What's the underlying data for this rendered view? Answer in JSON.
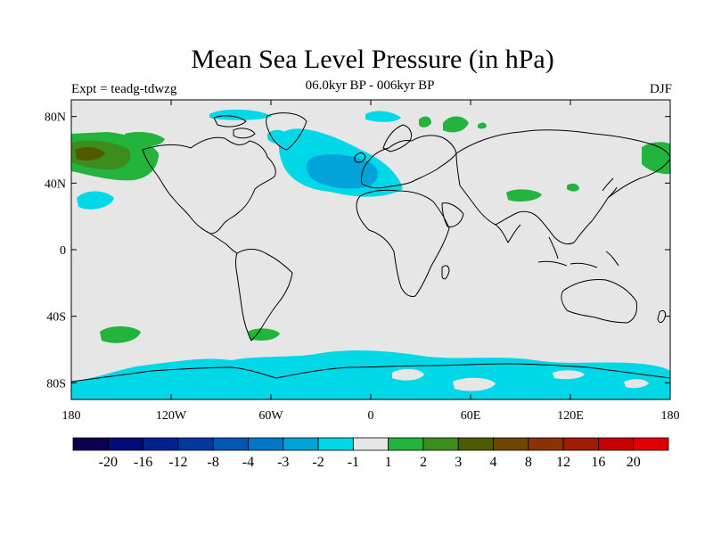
{
  "title": "Mean Sea Level Pressure (in hPa)",
  "subtitle": "06.0kyr BP - 006kyr BP",
  "expt": "Expt = teadg-tdwzg",
  "season": "DJF",
  "axes": {
    "x_ticks": [
      "180",
      "120W",
      "60W",
      "0",
      "60E",
      "120E",
      "180"
    ],
    "y_ticks": [
      "80N",
      "40N",
      "0",
      "40S",
      "80S"
    ]
  },
  "colorbar": {
    "labels": [
      "-20",
      "-16",
      "-12",
      "-8",
      "-4",
      "-3",
      "-2",
      "-1",
      "1",
      "2",
      "3",
      "4",
      "8",
      "12",
      "16",
      "20"
    ],
    "colors": [
      "#0a0050",
      "#000c78",
      "#00228c",
      "#0038a0",
      "#0058b4",
      "#0078c8",
      "#00a4d8",
      "#00d8e8",
      "#e6e6e6",
      "#22b43c",
      "#3c8c1e",
      "#505a00",
      "#6e4600",
      "#8c3200",
      "#a01e00",
      "#c80000",
      "#e00000"
    ]
  },
  "colors": {
    "background_field": "#e6e6e6",
    "neg_1_2": "#00d8e8",
    "neg_2_3": "#00a4d8",
    "pos_1_2": "#22b43c",
    "pos_2_3": "#3c8c1e",
    "pos_3_4": "#505a00"
  }
}
